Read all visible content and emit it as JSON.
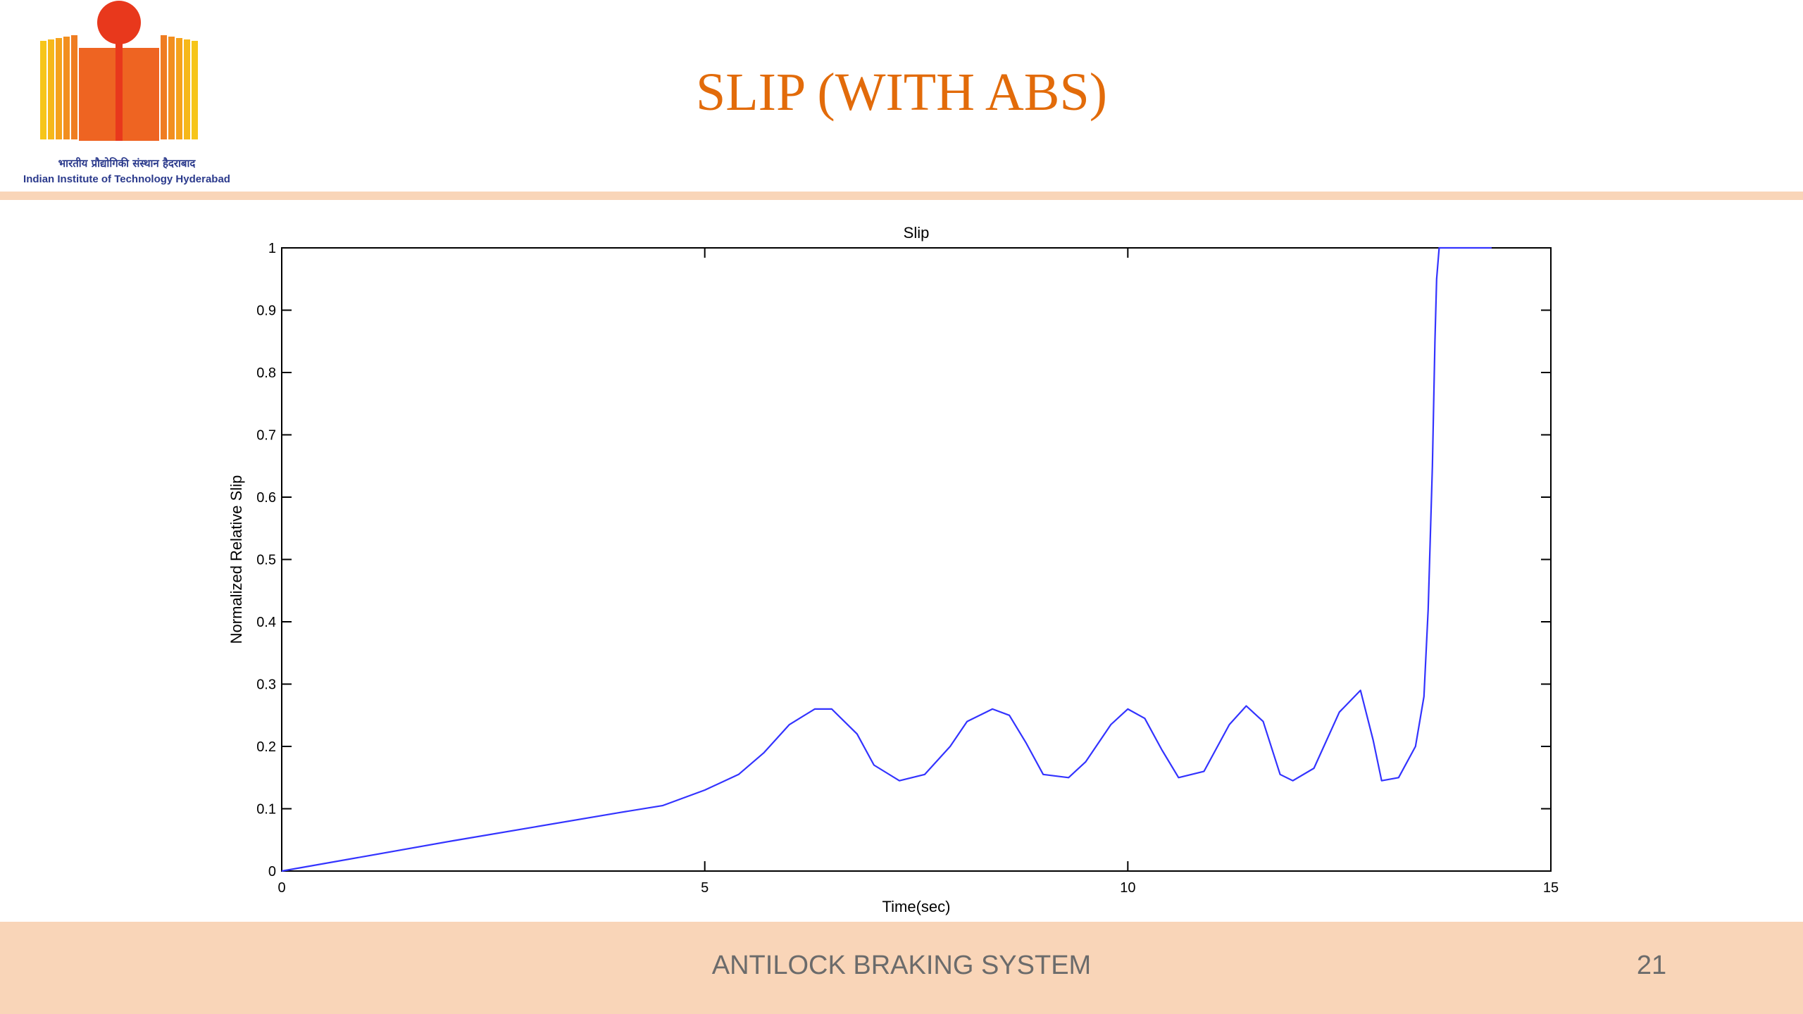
{
  "slide": {
    "title": "SLIP (WITH ABS)",
    "footer_text": "ANTILOCK BRAKING SYSTEM",
    "page_number": "21"
  },
  "logo": {
    "text_hindi": "भारतीय प्रौद्योगिकी संस्थान हैदराबाद",
    "text_english": "Indian Institute of Technology Hyderabad"
  },
  "colors": {
    "title": "#e26b0a",
    "accent_band": "#f9d5b8",
    "series_line": "#3333ff"
  },
  "chart_data": {
    "type": "line",
    "title": "Slip",
    "xlabel": "Time(sec)",
    "ylabel": "Normalized Relative Slip",
    "xlim": [
      0,
      15
    ],
    "ylim": [
      0,
      1
    ],
    "xticks": [
      0,
      5,
      10,
      15
    ],
    "yticks": [
      0,
      0.1,
      0.2,
      0.3,
      0.4,
      0.5,
      0.6,
      0.7,
      0.8,
      0.9,
      1
    ],
    "xtick_labels": [
      "0",
      "5",
      "10",
      "15"
    ],
    "ytick_labels": [
      "0",
      "0.1",
      "0.2",
      "0.3",
      "0.4",
      "0.5",
      "0.6",
      "0.7",
      "0.8",
      "0.9",
      "1"
    ],
    "grid": false,
    "series": [
      {
        "x": [
          0,
          1,
          2,
          3,
          4,
          4.5,
          5,
          5.4,
          5.7,
          6.0,
          6.3,
          6.5,
          6.8,
          7.0,
          7.3,
          7.6,
          7.9,
          8.1,
          8.4,
          8.6,
          8.8,
          9.0,
          9.3,
          9.5,
          9.8,
          10.0,
          10.2,
          10.4,
          10.6,
          10.9,
          11.2,
          11.4,
          11.6,
          11.8,
          11.95,
          12.2,
          12.5,
          12.75,
          12.9,
          13.0,
          13.2,
          13.4,
          13.5,
          13.55,
          13.6,
          13.63,
          13.65,
          13.68,
          13.7,
          14.0,
          14.3
        ],
        "y": [
          0,
          0.024,
          0.048,
          0.071,
          0.094,
          0.105,
          0.13,
          0.155,
          0.19,
          0.235,
          0.26,
          0.26,
          0.22,
          0.17,
          0.145,
          0.155,
          0.2,
          0.24,
          0.26,
          0.25,
          0.205,
          0.155,
          0.15,
          0.175,
          0.235,
          0.26,
          0.245,
          0.195,
          0.15,
          0.16,
          0.235,
          0.265,
          0.24,
          0.155,
          0.145,
          0.165,
          0.255,
          0.29,
          0.21,
          0.145,
          0.15,
          0.2,
          0.28,
          0.42,
          0.65,
          0.85,
          0.95,
          1.0,
          1.0,
          1.0,
          1.0
        ]
      }
    ]
  }
}
